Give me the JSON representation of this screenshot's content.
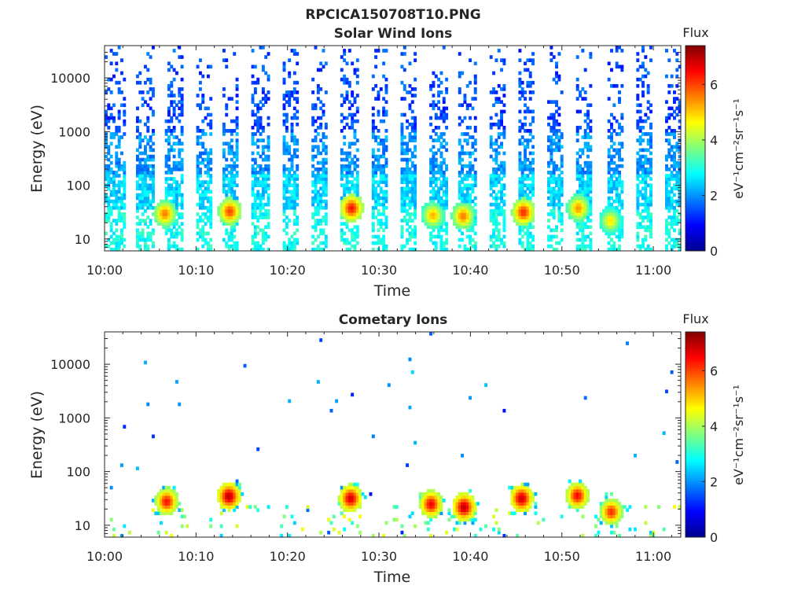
{
  "figure": {
    "title": "RPCICA150708T10.PNG"
  },
  "chart_data": [
    {
      "type": "heatmap",
      "title": "Solar Wind Ions",
      "xlabel": "Time",
      "ylabel": "Energy (eV)",
      "x_ticks": [
        "10:00",
        "10:10",
        "10:20",
        "10:30",
        "10:40",
        "10:50",
        "11:00"
      ],
      "y_ticks": [
        "10",
        "100",
        "1000",
        "10000"
      ],
      "y_scale": "log",
      "x_range_minutes": [
        0,
        63
      ],
      "ylim": [
        6,
        40000
      ],
      "colorbar": {
        "title": "Flux",
        "unit": "eV⁻¹cm⁻²sr⁻¹s⁻¹",
        "ticks": [
          "0",
          "2",
          "4",
          "6"
        ],
        "range": [
          0,
          7.4
        ],
        "colormap": "jet"
      },
      "sweep_centers_minutes": [
        0.5,
        1.5,
        4.4,
        7.6,
        10.8,
        13.8,
        17.0,
        20.3,
        23.5,
        26.8,
        30.0,
        33.3,
        36.5,
        39.7,
        42.9,
        46.1,
        49.3,
        52.5,
        55.8,
        59.0,
        62.2
      ],
      "hotspots": [
        {
          "time_minutes": 6.6,
          "energy_eV": 30,
          "flux": 5.6
        },
        {
          "time_minutes": 13.7,
          "energy_eV": 33,
          "flux": 6.0
        },
        {
          "time_minutes": 27.0,
          "energy_eV": 38,
          "flux": 6.4
        },
        {
          "time_minutes": 35.9,
          "energy_eV": 28,
          "flux": 5.2
        },
        {
          "time_minutes": 39.2,
          "energy_eV": 27,
          "flux": 5.6
        },
        {
          "time_minutes": 45.8,
          "energy_eV": 32,
          "flux": 6.2
        },
        {
          "time_minutes": 51.8,
          "energy_eV": 38,
          "flux": 5.4
        },
        {
          "time_minutes": 55.3,
          "energy_eV": 22,
          "flux": 4.8
        }
      ]
    },
    {
      "type": "heatmap",
      "title": "Cometary Ions",
      "xlabel": "Time",
      "ylabel": "Energy (eV)",
      "x_ticks": [
        "10:00",
        "10:10",
        "10:20",
        "10:30",
        "10:40",
        "10:50",
        "11:00"
      ],
      "y_ticks": [
        "10",
        "100",
        "1000",
        "10000"
      ],
      "y_scale": "log",
      "x_range_minutes": [
        0,
        63
      ],
      "ylim": [
        6,
        40000
      ],
      "colorbar": {
        "title": "Flux",
        "unit": "eV⁻¹cm⁻²sr⁻¹s⁻¹",
        "ticks": [
          "0",
          "2",
          "4",
          "6"
        ],
        "range": [
          0,
          7.4
        ],
        "colormap": "jet"
      },
      "hotspots": [
        {
          "time_minutes": 6.8,
          "energy_eV": 28,
          "flux": 6.4
        },
        {
          "time_minutes": 13.6,
          "energy_eV": 35,
          "flux": 7.0
        },
        {
          "time_minutes": 26.9,
          "energy_eV": 32,
          "flux": 6.8
        },
        {
          "time_minutes": 35.7,
          "energy_eV": 25,
          "flux": 6.6
        },
        {
          "time_minutes": 39.3,
          "energy_eV": 22,
          "flux": 7.0
        },
        {
          "time_minutes": 45.6,
          "energy_eV": 32,
          "flux": 6.9
        },
        {
          "time_minutes": 51.7,
          "energy_eV": 36,
          "flux": 6.5
        },
        {
          "time_minutes": 55.4,
          "energy_eV": 18,
          "flux": 6.2
        }
      ]
    }
  ]
}
